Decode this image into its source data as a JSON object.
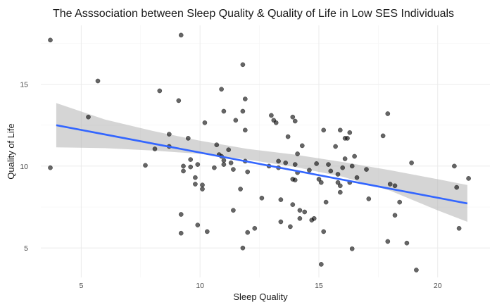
{
  "chart_data": {
    "type": "scatter",
    "title": "The Asssociation between Sleep Quality & Quality of Life in Low SES Individuals",
    "xlabel": "Sleep Quality",
    "ylabel": "Quality of Life",
    "xlim": [
      3.3,
      22.2
    ],
    "ylim": [
      3.2,
      18.6
    ],
    "x_ticks": [
      5,
      10,
      15,
      20
    ],
    "y_ticks": [
      5,
      10,
      15
    ],
    "grid": true,
    "legend": "none",
    "point_color": "#000000",
    "line_color": "#3366ff",
    "ribbon_color": "#b3b3b3",
    "points": [
      [
        3.7,
        17.7
      ],
      [
        3.7,
        9.9
      ],
      [
        5.3,
        13.0
      ],
      [
        5.7,
        15.2
      ],
      [
        7.7,
        10.05
      ],
      [
        8.1,
        11.05
      ],
      [
        8.3,
        14.6
      ],
      [
        8.7,
        11.95
      ],
      [
        8.7,
        11.2
      ],
      [
        9.1,
        14.0
      ],
      [
        9.2,
        18.0
      ],
      [
        9.2,
        7.05
      ],
      [
        9.2,
        5.9
      ],
      [
        9.3,
        10.0
      ],
      [
        9.3,
        9.7
      ],
      [
        9.5,
        11.7
      ],
      [
        9.6,
        10.4
      ],
      [
        9.6,
        9.95
      ],
      [
        9.8,
        9.3
      ],
      [
        9.8,
        8.9
      ],
      [
        9.9,
        10.1
      ],
      [
        9.9,
        6.4
      ],
      [
        10.1,
        8.85
      ],
      [
        10.1,
        8.6
      ],
      [
        10.2,
        12.65
      ],
      [
        10.3,
        6.0
      ],
      [
        10.6,
        9.9
      ],
      [
        10.7,
        11.3
      ],
      [
        10.8,
        10.7
      ],
      [
        10.9,
        14.7
      ],
      [
        10.9,
        10.6
      ],
      [
        11.0,
        13.35
      ],
      [
        11.0,
        10.35
      ],
      [
        11.0,
        10.1
      ],
      [
        11.2,
        11.0
      ],
      [
        11.3,
        10.2
      ],
      [
        11.4,
        7.3
      ],
      [
        11.4,
        9.8
      ],
      [
        11.5,
        12.8
      ],
      [
        11.7,
        8.6
      ],
      [
        11.8,
        16.2
      ],
      [
        11.8,
        13.35
      ],
      [
        11.8,
        5.0
      ],
      [
        11.9,
        14.1
      ],
      [
        11.9,
        12.2
      ],
      [
        11.9,
        10.3
      ],
      [
        12.0,
        9.65
      ],
      [
        12.0,
        5.95
      ],
      [
        12.3,
        6.2
      ],
      [
        12.6,
        8.05
      ],
      [
        12.9,
        10.0
      ],
      [
        13.0,
        13.1
      ],
      [
        13.1,
        12.8
      ],
      [
        13.2,
        12.65
      ],
      [
        13.3,
        10.3
      ],
      [
        13.3,
        9.9
      ],
      [
        13.4,
        6.6
      ],
      [
        13.4,
        7.95
      ],
      [
        13.6,
        10.2
      ],
      [
        13.7,
        11.8
      ],
      [
        13.8,
        6.3
      ],
      [
        13.9,
        13.0
      ],
      [
        13.9,
        9.2
      ],
      [
        13.9,
        7.65
      ],
      [
        14.0,
        9.15
      ],
      [
        14.0,
        12.75
      ],
      [
        14.0,
        10.1
      ],
      [
        14.1,
        9.6
      ],
      [
        14.1,
        10.75
      ],
      [
        14.2,
        7.3
      ],
      [
        14.2,
        6.8
      ],
      [
        14.3,
        11.25
      ],
      [
        14.4,
        7.2
      ],
      [
        14.6,
        9.75
      ],
      [
        14.7,
        6.7
      ],
      [
        14.8,
        6.8
      ],
      [
        14.9,
        10.15
      ],
      [
        15.0,
        9.2
      ],
      [
        15.1,
        9.0
      ],
      [
        15.1,
        4.0
      ],
      [
        15.2,
        6.0
      ],
      [
        15.2,
        12.2
      ],
      [
        15.3,
        7.8
      ],
      [
        15.4,
        10.1
      ],
      [
        15.5,
        9.7
      ],
      [
        15.7,
        11.2
      ],
      [
        15.8,
        9.5
      ],
      [
        15.8,
        9.0
      ],
      [
        15.9,
        8.8
      ],
      [
        15.9,
        8.4
      ],
      [
        15.9,
        12.2
      ],
      [
        16.0,
        9.9
      ],
      [
        16.1,
        10.45
      ],
      [
        16.1,
        11.7
      ],
      [
        16.2,
        11.7
      ],
      [
        16.3,
        9.0
      ],
      [
        16.3,
        12.05
      ],
      [
        16.4,
        10.0
      ],
      [
        16.4,
        4.95
      ],
      [
        16.5,
        10.6
      ],
      [
        16.6,
        9.3
      ],
      [
        17.0,
        9.8
      ],
      [
        17.1,
        8.0
      ],
      [
        17.7,
        11.85
      ],
      [
        17.9,
        13.2
      ],
      [
        17.9,
        5.4
      ],
      [
        18.0,
        8.9
      ],
      [
        18.2,
        8.8
      ],
      [
        18.2,
        7.0
      ],
      [
        18.4,
        7.8
      ],
      [
        18.7,
        5.3
      ],
      [
        18.9,
        10.2
      ],
      [
        19.1,
        3.65
      ],
      [
        20.7,
        10.0
      ],
      [
        20.8,
        8.7
      ],
      [
        20.9,
        6.2
      ],
      [
        21.3,
        9.25
      ]
    ],
    "fit_line": {
      "x": [
        3.95,
        21.25
      ],
      "y": [
        12.5,
        7.72
      ]
    },
    "confidence_band": {
      "x": [
        3.95,
        6.0,
        8.0,
        10.0,
        12.0,
        14.0,
        16.0,
        18.0,
        20.0,
        21.25
      ],
      "upper": [
        13.85,
        12.85,
        12.15,
        11.55,
        11.05,
        10.7,
        10.25,
        9.75,
        9.2,
        8.85
      ],
      "lower": [
        11.15,
        11.1,
        10.95,
        10.75,
        10.4,
        9.95,
        9.35,
        8.5,
        7.3,
        6.6
      ]
    }
  }
}
